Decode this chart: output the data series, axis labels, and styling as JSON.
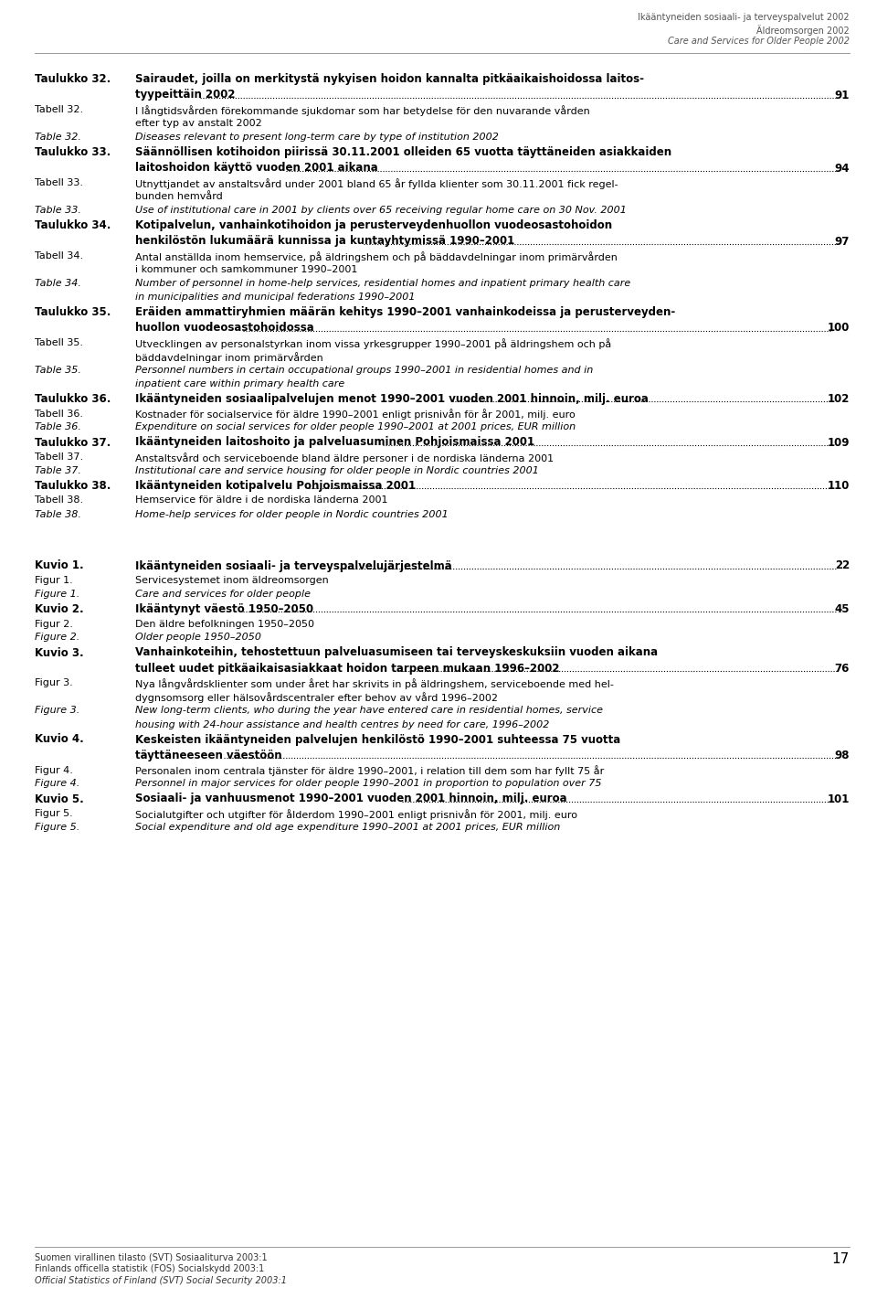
{
  "header_lines": [
    {
      "text": "Ikääntyneiden sosiaali- ja terveyspalvelut 2002",
      "italic": false
    },
    {
      "text": "Äldreomsorgen 2002",
      "italic": false
    },
    {
      "text": "Care and Services for Older People 2002",
      "italic": true
    }
  ],
  "footer_lines": [
    {
      "text": "Suomen virallinen tilasto (SVT) Sosiaaliturva 2003:1",
      "italic": false
    },
    {
      "text": "Finlands officella statistik (FOS) Socialskydd 2003:1",
      "italic": false
    },
    {
      "text": "Official Statistics of Finland (SVT) Social Security 2003:1",
      "italic": true
    }
  ],
  "page_number": "17",
  "entries": [
    {
      "kind": "bold",
      "label": "Taulukko 32.",
      "line1": "Sairaudet, joilla on merkitystä nykyisen hoidon kannalta pitkäaikaishoidossa laitos-",
      "line2": "tyypeittäin 2002",
      "page": "91"
    },
    {
      "kind": "normal",
      "label": "Tabell 32.",
      "line1": "I långtidsvården förekommande sjukdomar som har betydelse för den nuvarande vården",
      "line2": "efter typ av anstalt 2002",
      "italic": false
    },
    {
      "kind": "normal",
      "label": "Table 32.",
      "line1": "Diseases relevant to present long-term care by type of institution 2002",
      "italic": true
    },
    {
      "kind": "bold",
      "label": "Taulukko 33.",
      "line1": "Säännöllisen kotihoidon piirissä 30.11.2001 olleiden 65 vuotta täyttäneiden asiakkaiden",
      "line2": "laitoshoidon käyttö vuoden 2001 aikana",
      "page": "94"
    },
    {
      "kind": "normal",
      "label": "Tabell 33.",
      "line1": "Utnyttjandet av anstaltsvård under 2001 bland 65 år fyllda klienter som 30.11.2001 fick regel-",
      "line2": "bunden hemvård",
      "italic": false
    },
    {
      "kind": "normal",
      "label": "Table 33.",
      "line1": "Use of institutional care in 2001 by clients over 65 receiving regular home care on 30 Nov. 2001",
      "italic": true
    },
    {
      "kind": "bold",
      "label": "Taulukko 34.",
      "line1": "Kotipalvelun, vanhainkotihoidon ja perusterveydenhuollon vuodeosastohoidon",
      "line2": "henkilöstön lukumäärä kunnissa ja kuntayhtymissä 1990–2001",
      "page": "97"
    },
    {
      "kind": "normal",
      "label": "Tabell 34.",
      "line1": "Antal anställda inom hemservice, på äldringshem och på bäddavdelningar inom primärvården",
      "line2": "i kommuner och samkommuner 1990–2001",
      "italic": false
    },
    {
      "kind": "normal",
      "label": "Table 34.",
      "line1": "Number of personnel in home-help services, residential homes and inpatient primary health care",
      "line2": "in municipalities and municipal federations 1990–2001",
      "italic": true
    },
    {
      "kind": "bold",
      "label": "Taulukko 35.",
      "line1": "Eräiden ammattiryhmien määrän kehitys 1990–2001 vanhainkodeissa ja perusterveyden-",
      "line2": "huollon vuodeosastohoidossa",
      "page": "100"
    },
    {
      "kind": "normal",
      "label": "Tabell 35.",
      "line1": "Utvecklingen av personalstyrkan inom vissa yrkesgrupper 1990–2001 på äldringshem och på",
      "line2": "bäddavdelningar inom primärvården",
      "italic": false
    },
    {
      "kind": "normal",
      "label": "Table 35.",
      "line1": "Personnel numbers in certain occupational groups 1990–2001 in residential homes and in",
      "line2": "inpatient care within primary health care",
      "italic": true
    },
    {
      "kind": "bold",
      "label": "Taulukko 36.",
      "line1": "Ikääntyneiden sosiaalipalvelujen menot 1990–2001 vuoden 2001 hinnoin, milj. euroa",
      "page": "102"
    },
    {
      "kind": "normal",
      "label": "Tabell 36.",
      "line1": "Kostnader för socialservice för äldre 1990–2001 enligt prisnivån för år 2001, milj. euro",
      "italic": false
    },
    {
      "kind": "normal",
      "label": "Table 36.",
      "line1": "Expenditure on social services for older people 1990–2001 at 2001 prices, EUR million",
      "italic": true
    },
    {
      "kind": "bold",
      "label": "Taulukko 37.",
      "line1": "Ikääntyneiden laitoshoito ja palveluasuminen Pohjoismaissa 2001",
      "page": "109"
    },
    {
      "kind": "normal",
      "label": "Tabell 37.",
      "line1": "Anstaltsvård och serviceboende bland äldre personer i de nordiska länderna 2001",
      "italic": false
    },
    {
      "kind": "normal",
      "label": "Table 37.",
      "line1": "Institutional care and service housing for older people in Nordic countries 2001",
      "italic": true
    },
    {
      "kind": "bold",
      "label": "Taulukko 38.",
      "line1": "Ikääntyneiden kotipalvelu Pohjoismaissa 2001",
      "page": "110"
    },
    {
      "kind": "normal",
      "label": "Tabell 38.",
      "line1": "Hemservice för äldre i de nordiska länderna 2001",
      "italic": false
    },
    {
      "kind": "normal",
      "label": "Table 38.",
      "line1": "Home-help services for older people in Nordic countries 2001",
      "italic": true
    },
    {
      "kind": "spacer"
    },
    {
      "kind": "bold",
      "label": "Kuvio 1.",
      "line1": "Ikääntyneiden sosiaali- ja terveyspalvelujärjestelmä",
      "page": "22"
    },
    {
      "kind": "normal",
      "label": "Figur 1.",
      "line1": "Servicesystemet inom äldreomsorgen",
      "italic": false
    },
    {
      "kind": "normal",
      "label": "Figure 1.",
      "line1": "Care and services for older people",
      "italic": true
    },
    {
      "kind": "bold",
      "label": "Kuvio 2.",
      "line1": "Ikääntynyt väestö 1950–2050",
      "page": "45"
    },
    {
      "kind": "normal",
      "label": "Figur 2.",
      "line1": "Den äldre befolkningen 1950–2050",
      "italic": false
    },
    {
      "kind": "normal",
      "label": "Figure 2.",
      "line1": "Older people 1950–2050",
      "italic": true
    },
    {
      "kind": "bold",
      "label": "Kuvio 3.",
      "line1": "Vanhainkoteihin, tehostettuun palveluasumiseen tai terveyskeskuksiin vuoden aikana",
      "line2": "tulleet uudet pitkäaikaisasiakkaat hoidon tarpeen mukaan 1996–2002",
      "page": "76"
    },
    {
      "kind": "normal",
      "label": "Figur 3.",
      "line1": "Nya långvårdsklienter som under året har skrivits in på äldringshem, serviceboende med hel-",
      "line2": "dygnsomsorg eller hälsovårdscentraler efter behov av vård 1996–2002",
      "italic": false
    },
    {
      "kind": "normal",
      "label": "Figure 3.",
      "line1": "New long-term clients, who during the year have entered care in residential homes, service",
      "line2": "housing with 24-hour assistance and health centres by need for care, 1996–2002",
      "italic": true
    },
    {
      "kind": "bold",
      "label": "Kuvio 4.",
      "line1": "Keskeisten ikääntyneiden palvelujen henkilöstö 1990–2001 suhteessa 75 vuotta",
      "line2": "täyttäneeseen väestöön",
      "page": "98"
    },
    {
      "kind": "normal",
      "label": "Figur 4.",
      "line1": "Personalen inom centrala tjänster för äldre 1990–2001, i relation till dem som har fyllt 75 år",
      "italic": false
    },
    {
      "kind": "normal",
      "label": "Figure 4.",
      "line1": "Personnel in major services for older people 1990–2001 in proportion to population over 75",
      "italic": true
    },
    {
      "kind": "bold",
      "label": "Kuvio 5.",
      "line1": "Sosiaali- ja vanhuusmenot 1990–2001 vuoden 2001 hinnoin, milj. euroa",
      "page": "101"
    },
    {
      "kind": "normal",
      "label": "Figur 5.",
      "line1": "Socialutgifter och utgifter för ålderdom 1990–2001 enligt prisnivån för 2001, milj. euro",
      "italic": false
    },
    {
      "kind": "normal",
      "label": "Figure 5.",
      "line1": "Social expenditure and old age expenditure 1990–2001 at 2001 prices, EUR million",
      "italic": true
    }
  ]
}
